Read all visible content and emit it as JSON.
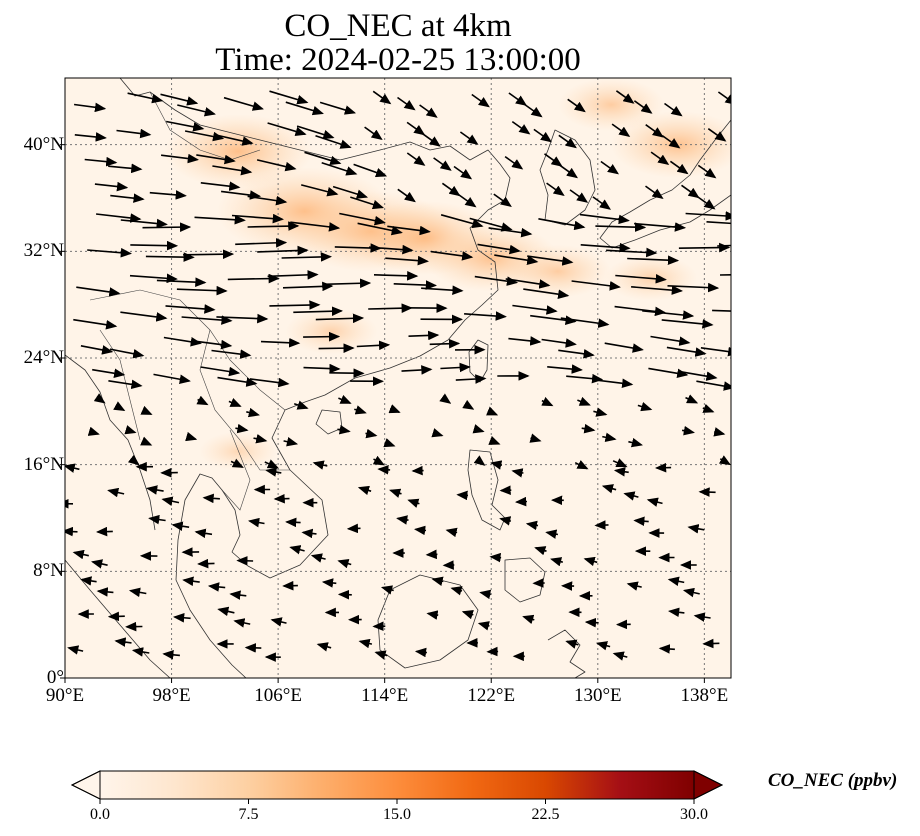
{
  "title": {
    "line1": "CO_NEC at 4km",
    "line2": "Time: 2024-02-25 13:00:00"
  },
  "map": {
    "lon_range": [
      90,
      140
    ],
    "lat_range": [
      0,
      45
    ],
    "lat_ticks": [
      {
        "value": 40,
        "label": "40°N"
      },
      {
        "value": 32,
        "label": "32°N"
      },
      {
        "value": 24,
        "label": "24°N"
      },
      {
        "value": 16,
        "label": "16°N"
      },
      {
        "value": 8,
        "label": "8°N"
      },
      {
        "value": 0,
        "label": "0°"
      }
    ],
    "lon_ticks": [
      {
        "value": 90,
        "label": "90°E"
      },
      {
        "value": 98,
        "label": "98°E"
      },
      {
        "value": 106,
        "label": "106°E"
      },
      {
        "value": 114,
        "label": "114°E"
      },
      {
        "value": 122,
        "label": "122°E"
      },
      {
        "value": 130,
        "label": "130°E"
      },
      {
        "value": 138,
        "label": "138°E"
      }
    ],
    "gridlines": true,
    "background_color": "#fff4e8",
    "concentration_plumes": [
      {
        "lon": 103,
        "lat": 39.5,
        "value": 7
      },
      {
        "lon": 108,
        "lat": 35,
        "value": 9
      },
      {
        "lon": 113,
        "lat": 33.5,
        "value": 8
      },
      {
        "lon": 117,
        "lat": 33,
        "value": 7
      },
      {
        "lon": 122,
        "lat": 31.5,
        "value": 6
      },
      {
        "lon": 127,
        "lat": 30.5,
        "value": 4
      },
      {
        "lon": 134,
        "lat": 30,
        "value": 3
      },
      {
        "lon": 136,
        "lat": 40,
        "value": 6
      },
      {
        "lon": 131,
        "lat": 43,
        "value": 4
      },
      {
        "lon": 110,
        "lat": 26,
        "value": 3
      },
      {
        "lon": 103,
        "lat": 17,
        "value": 2
      }
    ]
  },
  "colorbar": {
    "label": "CO_NEC (ppbv)",
    "min": 0.0,
    "max": 30.0,
    "ticks": [
      "0.0",
      "7.5",
      "15.0",
      "22.5",
      "30.0"
    ],
    "colormap": [
      "#fff5eb",
      "#fee6ce",
      "#fdd0a2",
      "#fdae6b",
      "#fd8d3c",
      "#f16913",
      "#d94801",
      "#a50f15",
      "#7f0000"
    ]
  }
}
